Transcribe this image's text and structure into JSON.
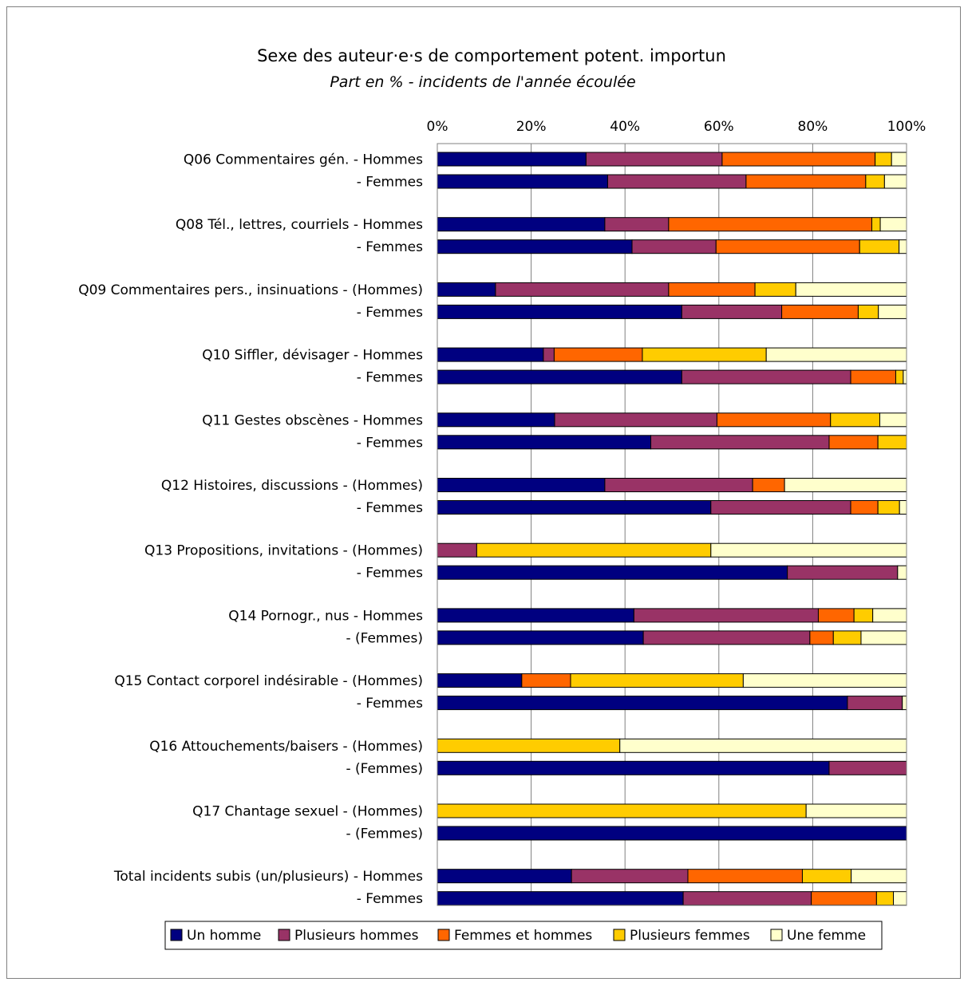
{
  "chart_data": {
    "type": "bar",
    "orientation": "horizontal",
    "stacked": "percent",
    "title": "Sexe des auteur·e·s de comportement potent.  importun",
    "subtitle": "Part en % -  incidents de l'année écoulée",
    "xlim": [
      0,
      100
    ],
    "x_ticks": [
      "0%",
      "20%",
      "40%",
      "60%",
      "80%",
      "100%"
    ],
    "grid": true,
    "legend_position": "bottom",
    "series": [
      {
        "name": "Un homme",
        "color": "#000080"
      },
      {
        "name": "Plusieurs hommes",
        "color": "#993366"
      },
      {
        "name": "Femmes et hommes",
        "color": "#FF6600"
      },
      {
        "name": "Plusieurs femmes",
        "color": "#FFCC00"
      },
      {
        "name": "Une femme",
        "color": "#FFFFCC"
      }
    ],
    "rows": [
      {
        "label": "Q06 Commentaires gén. - Hommes",
        "values": [
          31.7,
          29.0,
          32.6,
          3.5,
          3.2
        ]
      },
      {
        "label": "- Femmes",
        "values": [
          36.3,
          29.5,
          25.5,
          4.0,
          4.7
        ]
      },
      {
        "label": "Q08 Tél., lettres, courriels - Hommes",
        "values": [
          35.7,
          13.6,
          43.3,
          1.8,
          5.6
        ]
      },
      {
        "label": "- Femmes",
        "values": [
          41.5,
          17.9,
          30.6,
          8.4,
          1.6
        ]
      },
      {
        "label": "Q09 Commentaires pers., insinuations - (Hommes)",
        "values": [
          12.4,
          36.9,
          18.4,
          8.7,
          23.6
        ]
      },
      {
        "label": "- Femmes",
        "values": [
          52.1,
          21.3,
          16.3,
          4.3,
          6.0
        ]
      },
      {
        "label": "Q10 Siffler, dévisager - Hommes",
        "values": [
          22.6,
          2.3,
          18.8,
          26.4,
          29.9
        ]
      },
      {
        "label": "- Femmes",
        "values": [
          52.1,
          36.0,
          9.6,
          1.6,
          0.7
        ]
      },
      {
        "label": "Q11 Gestes obscènes - Hommes",
        "values": [
          25.0,
          34.6,
          24.2,
          10.5,
          5.7
        ]
      },
      {
        "label": "- Femmes",
        "values": [
          45.5,
          38.0,
          10.4,
          6.1,
          0.0
        ]
      },
      {
        "label": "Q12 Histoires, discussions - (Hommes)",
        "values": [
          35.7,
          31.5,
          6.8,
          0.0,
          26.0
        ]
      },
      {
        "label": "- Femmes",
        "values": [
          58.3,
          29.8,
          5.8,
          4.6,
          1.5
        ]
      },
      {
        "label": "Q13 Propositions, invitations - (Hommes)",
        "values": [
          0.0,
          8.4,
          0.0,
          49.9,
          41.7
        ]
      },
      {
        "label": "- Femmes",
        "values": [
          74.6,
          23.5,
          0.0,
          0.0,
          1.9
        ]
      },
      {
        "label": "Q14 Pornogr., nus - Hommes",
        "values": [
          41.9,
          39.3,
          7.6,
          4.0,
          7.2
        ]
      },
      {
        "label": "- (Femmes)",
        "values": [
          43.9,
          35.5,
          5.0,
          5.9,
          9.7
        ]
      },
      {
        "label": "Q15 Contact corporel indésirable - (Hommes)",
        "values": [
          18.0,
          0.0,
          10.4,
          36.8,
          34.8
        ]
      },
      {
        "label": "- Femmes",
        "values": [
          87.4,
          11.7,
          0.0,
          0.0,
          0.9
        ]
      },
      {
        "label": "Q16 Attouchements/baisers - (Hommes)",
        "values": [
          0.0,
          0.0,
          0.0,
          38.9,
          61.1
        ]
      },
      {
        "label": "- (Femmes)",
        "values": [
          83.5,
          16.5,
          0.0,
          0.0,
          0.0
        ]
      },
      {
        "label": "Q17 Chantage sexuel - (Hommes)",
        "values": [
          0.0,
          0.0,
          0.0,
          78.6,
          21.4
        ]
      },
      {
        "label": "- (Femmes)",
        "values": [
          100.0,
          0.0,
          0.0,
          0.0,
          0.0
        ]
      },
      {
        "label": "Total incidents subis (un/plusieurs) - Hommes",
        "values": [
          28.6,
          24.8,
          24.4,
          10.4,
          11.8
        ]
      },
      {
        "label": "- Femmes",
        "values": [
          52.4,
          27.3,
          13.9,
          3.6,
          2.8
        ]
      }
    ]
  }
}
